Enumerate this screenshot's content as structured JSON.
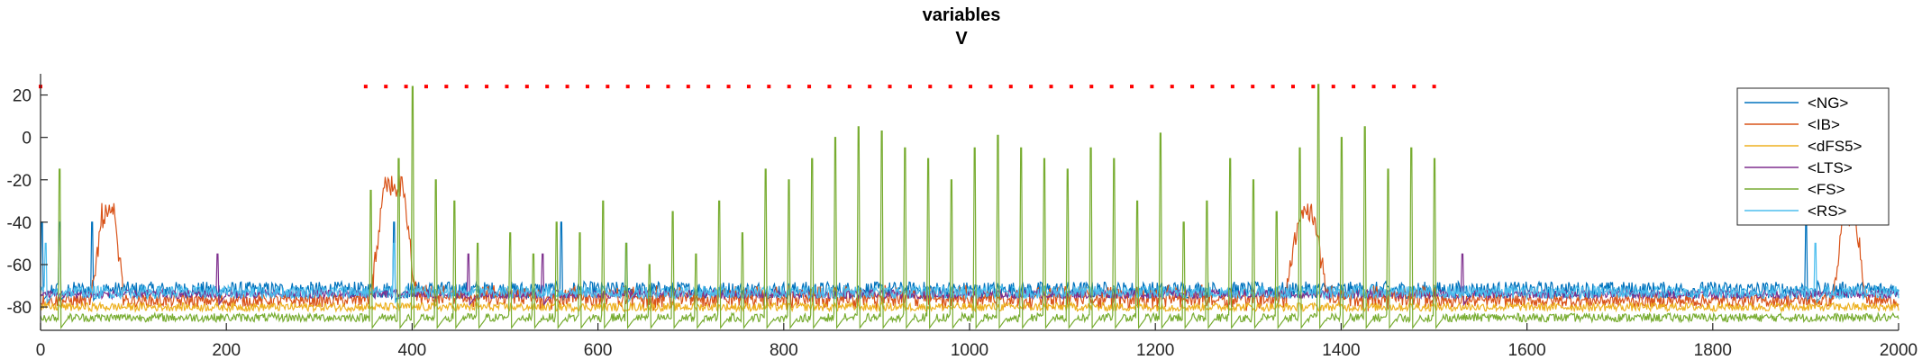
{
  "chart_data": {
    "type": "line",
    "title": "variables",
    "subtitle": "V",
    "xlabel": "",
    "ylabel": "",
    "xlim": [
      0,
      2000
    ],
    "ylim": [
      -91,
      30
    ],
    "x_ticks": [
      0,
      200,
      400,
      600,
      800,
      1000,
      1200,
      1400,
      1600,
      1800,
      2000
    ],
    "y_ticks": [
      -80,
      -60,
      -40,
      -20,
      0,
      20
    ],
    "grid": false,
    "legend_position": "top-right",
    "colors": {
      "NG": "#0072bd",
      "IB": "#d95319",
      "dFS5": "#edb120",
      "LTS": "#7e2f8e",
      "FS": "#77ac30",
      "RS": "#4dbeee",
      "markers": "#ff0000"
    },
    "series": [
      {
        "name": "<NG>",
        "baseline": -72,
        "noise": 4,
        "spike_times": [
          1,
          20,
          55,
          380,
          560,
          1900
        ],
        "spike_peak": -40
      },
      {
        "name": "<IB>",
        "baseline": -77,
        "noise": 3,
        "bursts": [
          {
            "start": 55,
            "end": 90,
            "peak": -37
          },
          {
            "start": 355,
            "end": 405,
            "peak": -23
          },
          {
            "start": 1340,
            "end": 1385,
            "peak": -37
          },
          {
            "start": 1930,
            "end": 1965,
            "peak": -36
          }
        ],
        "active_range": [
          340,
          1510
        ],
        "active_noise": 7
      },
      {
        "name": "<dFS5>",
        "baseline": -80,
        "noise": 2,
        "spike_times": []
      },
      {
        "name": "<LTS>",
        "baseline": -74,
        "noise": 2,
        "spike_times": [
          190,
          460,
          540,
          1530
        ],
        "spike_peak": -55
      },
      {
        "name": "<FS>",
        "baseline": -85,
        "noise": 2,
        "spike_times": [
          20,
          355,
          385,
          400,
          425,
          445,
          470,
          505,
          530,
          555,
          580,
          605,
          630,
          655,
          680,
          705,
          730,
          755,
          780,
          805,
          830,
          855,
          880,
          905,
          930,
          955,
          980,
          1005,
          1030,
          1055,
          1080,
          1105,
          1130,
          1155,
          1180,
          1205,
          1230,
          1255,
          1280,
          1305,
          1330,
          1355,
          1375,
          1400,
          1425,
          1450,
          1475,
          1500
        ],
        "spike_peaks": [
          -15,
          -25,
          -10,
          24,
          -20,
          -30,
          -50,
          -45,
          -55,
          -40,
          -45,
          -30,
          -50,
          -60,
          -35,
          -55,
          -30,
          -45,
          -15,
          -20,
          -10,
          0,
          5,
          3,
          -5,
          -10,
          -20,
          -5,
          1,
          -5,
          -10,
          -15,
          -5,
          -10,
          -30,
          2,
          -40,
          -30,
          -10,
          -20,
          -35,
          -5,
          25,
          0,
          5,
          -15,
          -5,
          -10
        ]
      },
      {
        "name": "<RS>",
        "baseline": -73,
        "noise": 3,
        "spike_times": [
          5,
          380,
          630,
          1910
        ],
        "spike_peak": -50
      }
    ],
    "markers": {
      "y": 24,
      "x_start": 350,
      "x_end": 1505,
      "step": 21.7,
      "extra_x": [
        0
      ]
    }
  }
}
